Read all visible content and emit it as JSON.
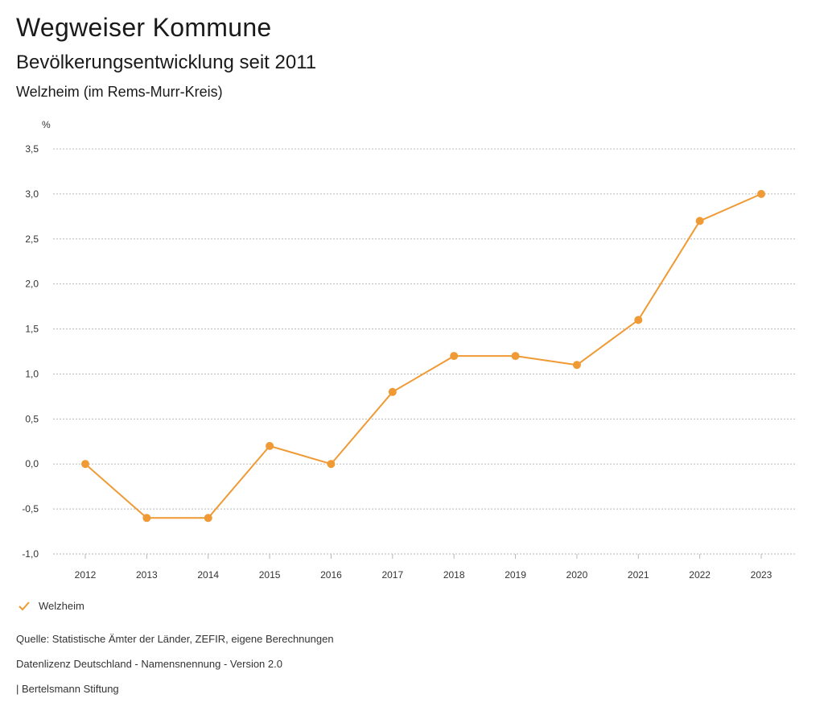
{
  "header": {
    "title": "Wegweiser Kommune",
    "subtitle": "Bevölkerungsentwicklung seit 2011",
    "region": "Welzheim (im Rems-Murr-Kreis)"
  },
  "colors": {
    "series": "#ef9a34",
    "grid": "#b8b8b8",
    "text": "#333333"
  },
  "chart_data": {
    "type": "line",
    "title": "Bevölkerungsentwicklung seit 2011",
    "ylabel": "%",
    "xlabel": "",
    "x": [
      "2012",
      "2013",
      "2014",
      "2015",
      "2016",
      "2017",
      "2018",
      "2019",
      "2020",
      "2021",
      "2022",
      "2023"
    ],
    "series": [
      {
        "name": "Welzheim",
        "values": [
          0.0,
          -0.6,
          -0.6,
          0.2,
          0.0,
          0.8,
          1.2,
          1.2,
          1.1,
          1.6,
          2.7,
          3.0
        ]
      }
    ],
    "ylim": [
      -1.0,
      3.5
    ],
    "yticks": [
      3.5,
      3.0,
      2.5,
      2.0,
      1.5,
      1.0,
      0.5,
      0.0,
      -0.5,
      -1.0
    ],
    "ytick_labels": [
      "3,5",
      "3,0",
      "2,5",
      "2,0",
      "1,5",
      "1,0",
      "0,5",
      "0,0",
      "-0,5",
      "-1,0"
    ],
    "grid": true,
    "legend": "bottom-left"
  },
  "footer": {
    "source": "Quelle: Statistische Ämter der Länder, ZEFIR, eigene Berechnungen",
    "license": "Datenlizenz Deutschland - Namensnennung - Version 2.0",
    "publisher": "| Bertelsmann Stiftung"
  }
}
